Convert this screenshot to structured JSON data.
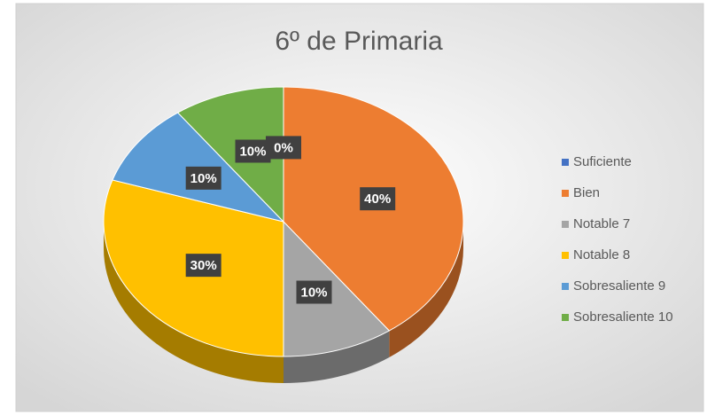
{
  "chart_data": {
    "type": "pie",
    "title": "6º de Primaria",
    "categories": [
      "Suficiente",
      "Bien",
      "Notable 7",
      "Notable 8",
      "Sobresaliente 9",
      "Sobresaliente 10"
    ],
    "values": [
      0,
      40,
      10,
      30,
      10,
      10
    ],
    "value_labels": [
      "0%",
      "40%",
      "10%",
      "30%",
      "10%",
      "10%"
    ],
    "colors": [
      "#4472c4",
      "#ed7d31",
      "#a5a5a5",
      "#ffc000",
      "#5b9bd5",
      "#70ad47"
    ],
    "legend": "right"
  }
}
